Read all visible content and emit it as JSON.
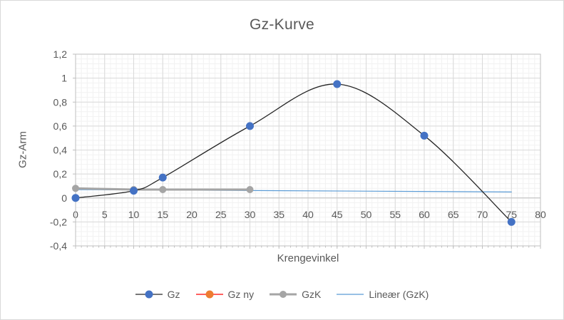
{
  "colors": {
    "background": "#ffffff",
    "chart_border": "#d9d9d9",
    "grid_minor": "#f2f2f2",
    "grid_major": "#d9d9d9",
    "axis_line": "#bfbfbf",
    "text": "#595959",
    "gz_line": "#262626",
    "gz_marker": "#4472c4",
    "gz_ny_line": "#ff0000",
    "gz_ny_marker": "#ed7d31",
    "gzk": "#a5a5a5",
    "trendline": "#5b9bd5"
  },
  "chart_data": {
    "type": "scatter",
    "title": "Gz-Kurve",
    "xlabel": "Krengevinkel",
    "ylabel": "Gz-Arm",
    "xlim": [
      0,
      80
    ],
    "ylim": [
      -0.4,
      1.2
    ],
    "grid": "major and minor, both axes",
    "legend_position": "bottom",
    "x_minor_step": 1,
    "y_minor_step": 0.04,
    "x_ticks": [
      {
        "v": 0,
        "label": "0"
      },
      {
        "v": 5,
        "label": "5"
      },
      {
        "v": 10,
        "label": "10"
      },
      {
        "v": 15,
        "label": "15"
      },
      {
        "v": 20,
        "label": "20"
      },
      {
        "v": 25,
        "label": "25"
      },
      {
        "v": 30,
        "label": "30"
      },
      {
        "v": 35,
        "label": "35"
      },
      {
        "v": 40,
        "label": "40"
      },
      {
        "v": 45,
        "label": "45"
      },
      {
        "v": 50,
        "label": "50"
      },
      {
        "v": 55,
        "label": "55"
      },
      {
        "v": 60,
        "label": "60"
      },
      {
        "v": 65,
        "label": "65"
      },
      {
        "v": 70,
        "label": "70"
      },
      {
        "v": 75,
        "label": "75"
      },
      {
        "v": 80,
        "label": "80"
      }
    ],
    "y_ticks": [
      {
        "v": 1.2,
        "label": "1,2"
      },
      {
        "v": 1,
        "label": "1"
      },
      {
        "v": 0.8,
        "label": "0,8"
      },
      {
        "v": 0.6,
        "label": "0,6"
      },
      {
        "v": 0.4,
        "label": "0,4"
      },
      {
        "v": 0.2,
        "label": "0,2"
      },
      {
        "v": 0,
        "label": "0"
      },
      {
        "v": -0.2,
        "label": "-0,2"
      },
      {
        "v": -0.4,
        "label": "-0,4"
      }
    ],
    "series": [
      {
        "name": "Gz",
        "smooth": true,
        "x": [
          0,
          10,
          15,
          30,
          45,
          60,
          75
        ],
        "y": [
          0,
          0.06,
          0.17,
          0.6,
          0.95,
          0.52,
          -0.2
        ],
        "line_color": "#262626",
        "line_width": 1.3,
        "marker": "circle",
        "marker_color": "#4472c4",
        "marker_size": 5.5
      },
      {
        "name": "Gz ny",
        "smooth": false,
        "x": [],
        "y": [],
        "line_color": "#ff0000",
        "line_width": 1.3,
        "marker": "circle",
        "marker_color": "#ed7d31",
        "marker_size": 5.5
      },
      {
        "name": "GzK",
        "smooth": false,
        "x": [
          0,
          10,
          15,
          30
        ],
        "y": [
          0.08,
          0.07,
          0.07,
          0.07
        ],
        "line_color": "#a5a5a5",
        "line_width": 3,
        "marker": "circle",
        "marker_color": "#a5a5a5",
        "marker_size": 5
      },
      {
        "name": "Lineær (GzK)",
        "smooth": false,
        "trendline": true,
        "x": [
          0,
          75
        ],
        "y": [
          0.07,
          0.05
        ],
        "line_color": "#5b9bd5",
        "line_width": 1.2,
        "marker": "none"
      }
    ]
  }
}
